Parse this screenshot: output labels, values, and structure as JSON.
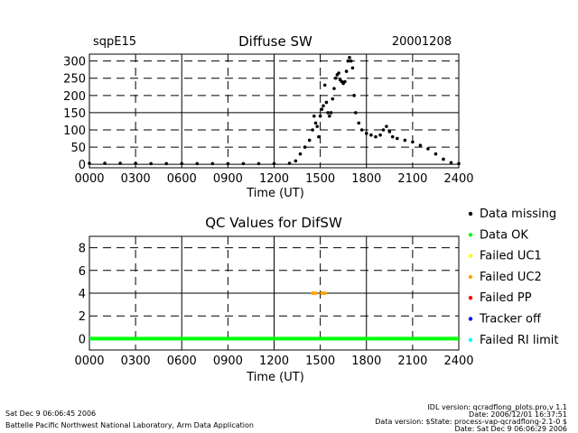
{
  "header": {
    "site": "sqpE15",
    "title": "Diffuse SW",
    "date": "20001208"
  },
  "qc_title": "QC Values for DifSW",
  "legend": [
    {
      "label": "Data missing",
      "color": "#000000"
    },
    {
      "label": "Data OK",
      "color": "#00ff00"
    },
    {
      "label": "Failed UC1",
      "color": "#ffff00"
    },
    {
      "label": "Failed UC2",
      "color": "#ffa500"
    },
    {
      "label": "Failed PP",
      "color": "#ff0000"
    },
    {
      "label": "Tracker off",
      "color": "#0000ff"
    },
    {
      "label": "Failed RI limit",
      "color": "#00ffff"
    }
  ],
  "footer": {
    "timestamp": "Sat Dec  9 06:06:45 2006",
    "lab": "Battelle Pacific Northwest National Laboratory, Arm Data Application",
    "idl": "IDL version: qcradflong_plots.pro,v 1.1",
    "date_line": "Date: 2006/12/01 16:37:51",
    "version": "Data version: $State: process-vap-qcradflong-2.1-0 $",
    "date2": "Date: Sat Dec  9 06:06:29 2006"
  },
  "chart_data": [
    {
      "type": "scatter",
      "title": "Diffuse SW",
      "xlabel": "Time (UT)",
      "ylabel": "",
      "x_ticks": [
        "0000",
        "0300",
        "0600",
        "0900",
        "1200",
        "1500",
        "1800",
        "2100",
        "2400"
      ],
      "y_ticks": [
        "0",
        "50",
        "100",
        "150",
        "200",
        "250",
        "300"
      ],
      "xlim": [
        0,
        24
      ],
      "ylim": [
        -10,
        320
      ],
      "series": [
        {
          "color": "#000000",
          "points": [
            [
              0,
              3
            ],
            [
              1,
              3
            ],
            [
              2,
              3
            ],
            [
              3,
              3
            ],
            [
              4,
              2
            ],
            [
              5,
              2
            ],
            [
              6,
              2
            ],
            [
              7,
              2
            ],
            [
              8,
              2
            ],
            [
              9,
              2
            ],
            [
              10,
              2
            ],
            [
              11,
              2
            ],
            [
              12,
              2
            ],
            [
              13,
              3
            ],
            [
              13.4,
              10
            ],
            [
              13.7,
              30
            ],
            [
              14.0,
              50
            ],
            [
              14.3,
              70
            ],
            [
              14.5,
              100
            ],
            [
              14.6,
              140
            ],
            [
              14.7,
              120
            ],
            [
              14.8,
              110
            ],
            [
              14.9,
              80
            ],
            [
              15.0,
              140
            ],
            [
              15.1,
              160
            ],
            [
              15.2,
              170
            ],
            [
              15.3,
              230
            ],
            [
              15.4,
              180
            ],
            [
              15.5,
              150
            ],
            [
              15.6,
              140
            ],
            [
              15.7,
              150
            ],
            [
              15.8,
              190
            ],
            [
              15.9,
              220
            ],
            [
              16.0,
              250
            ],
            [
              16.1,
              260
            ],
            [
              16.2,
              265
            ],
            [
              16.3,
              245
            ],
            [
              16.4,
              240
            ],
            [
              16.5,
              235
            ],
            [
              16.6,
              240
            ],
            [
              16.7,
              270
            ],
            [
              16.8,
              300
            ],
            [
              16.9,
              310
            ],
            [
              17.0,
              300
            ],
            [
              17.1,
              280
            ],
            [
              17.2,
              200
            ],
            [
              17.3,
              150
            ],
            [
              17.5,
              120
            ],
            [
              17.7,
              100
            ],
            [
              18.0,
              90
            ],
            [
              18.3,
              85
            ],
            [
              18.6,
              80
            ],
            [
              18.9,
              85
            ],
            [
              19.1,
              100
            ],
            [
              19.3,
              110
            ],
            [
              19.5,
              95
            ],
            [
              19.7,
              80
            ],
            [
              20.0,
              75
            ],
            [
              20.5,
              70
            ],
            [
              21.0,
              65
            ],
            [
              21.5,
              55
            ],
            [
              22.0,
              45
            ],
            [
              22.5,
              30
            ],
            [
              23.0,
              15
            ],
            [
              23.5,
              5
            ],
            [
              24.0,
              2
            ]
          ]
        }
      ]
    },
    {
      "type": "scatter",
      "title": "QC Values for DifSW",
      "xlabel": "Time (UT)",
      "ylabel": "",
      "x_ticks": [
        "0000",
        "0300",
        "0600",
        "0900",
        "1200",
        "1500",
        "1800",
        "2100",
        "2400"
      ],
      "y_ticks": [
        "0",
        "2",
        "4",
        "6",
        "8"
      ],
      "xlim": [
        0,
        24
      ],
      "ylim": [
        -1,
        9
      ],
      "series": [
        {
          "name": "Data OK",
          "color": "#00ff00",
          "points": [
            [
              0,
              0
            ],
            [
              24,
              0
            ]
          ]
        },
        {
          "name": "Failed UC2",
          "color": "#ffa500",
          "points": [
            [
              14.5,
              4
            ],
            [
              14.6,
              4
            ],
            [
              14.7,
              4
            ],
            [
              15.1,
              4
            ],
            [
              15.2,
              4
            ],
            [
              15.3,
              4
            ]
          ]
        }
      ]
    }
  ]
}
